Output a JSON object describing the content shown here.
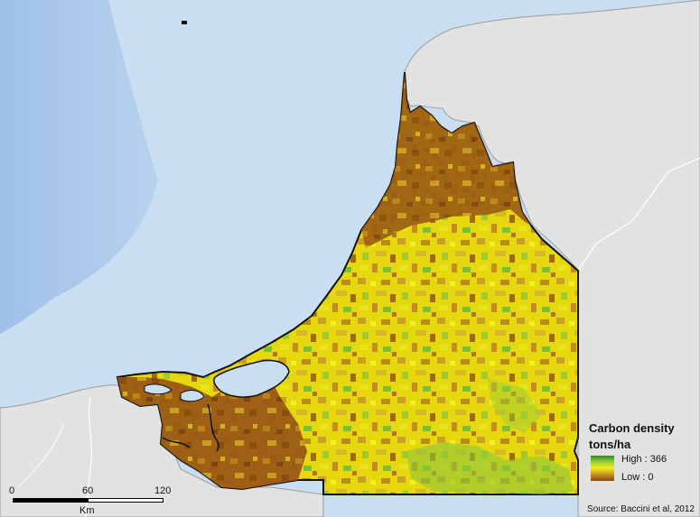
{
  "legend": {
    "title": "Carbon density",
    "unit": "tons/ha",
    "high_label": "High : 366",
    "low_label": "Low : 0",
    "high_value": 366,
    "low_value": 0,
    "ramp_colors": [
      "#2e8a22",
      "#8cc63a",
      "#f2ee1a",
      "#c99a22",
      "#8a4a10"
    ]
  },
  "scalebar": {
    "ticks": [
      "0",
      "60",
      "120"
    ],
    "unit": "Km"
  },
  "source": "Source: Baccini et al, 2012",
  "colors": {
    "sea": "#c9def0",
    "deep_sea": "#a9c8ea",
    "land": "#e2e2e2",
    "border": "#111111"
  }
}
